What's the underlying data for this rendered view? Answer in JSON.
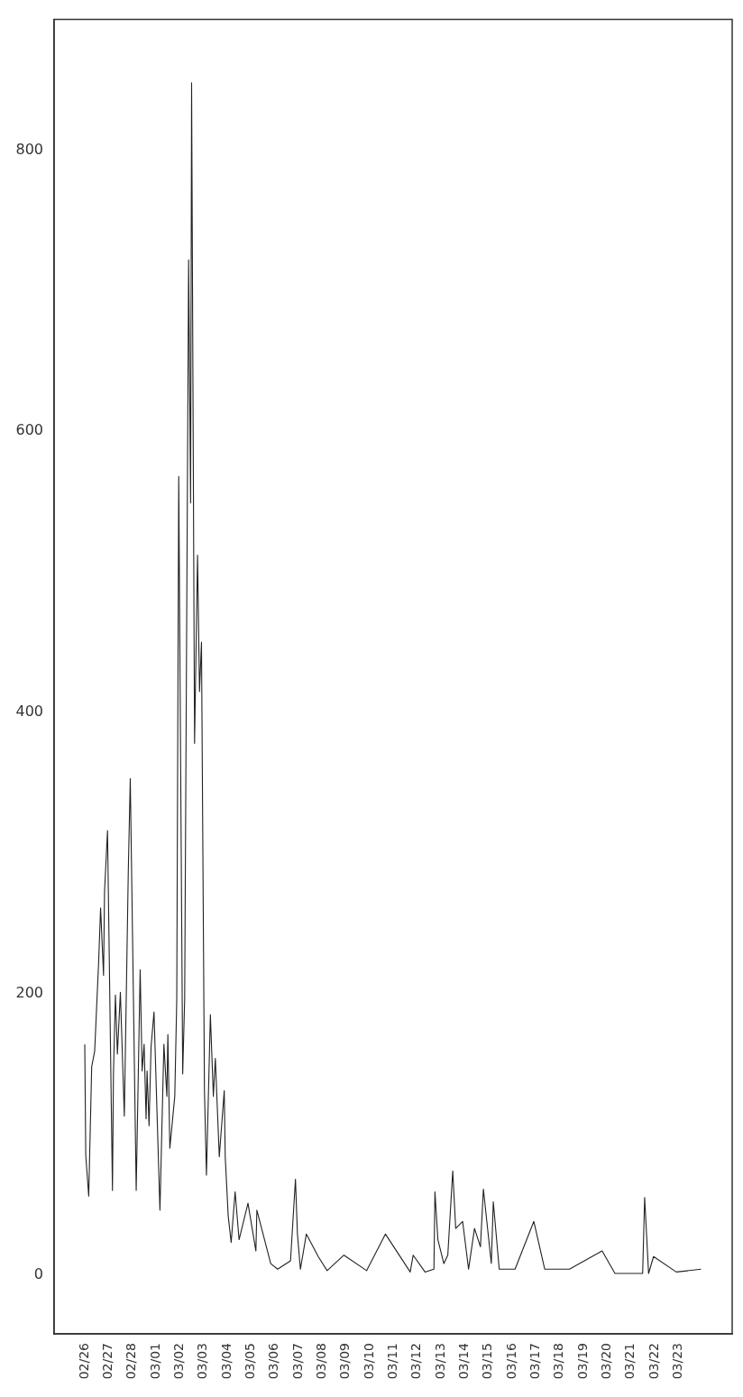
{
  "chart_data": {
    "type": "line",
    "color": "#222222",
    "x": [
      "--02-26T00:00",
      "--02-26T01:00",
      "--02-26T04:00",
      "--02-26T07:00",
      "--02-26T10:00",
      "--02-26T14:00",
      "--02-26T16:00",
      "--02-26T19:00",
      "--02-26T20:00",
      "--02-26T23:00",
      "--02-27T04:00",
      "--02-27T05:00",
      "--02-27T07:00",
      "--02-27T09:00",
      "--02-27T12:00",
      "--02-27T16:00",
      "--02-27T20:00",
      "--02-27T22:00",
      "--02-28T04:00",
      "--02-28T08:00",
      "--02-28T10:00",
      "--02-28T12:00",
      "--02-28T14:00",
      "--02-28T15:00",
      "--02-28T17:00",
      "--02-28T19:00",
      "--02-28T22:00",
      "--03-01T04:00",
      "--03-01T08:00",
      "--03-01T11:00",
      "--03-01T12:00",
      "--03-01T14:00",
      "--03-01T19:00",
      "--03-01T21:00",
      "--03-01T23:00",
      "--03-02T03:00",
      "--03-02T05:00",
      "--03-02T09:00",
      "--03-02T11:00",
      "--03-02T12:00",
      "--03-02T15:00",
      "--03-02T18:00",
      "--03-02T20:00",
      "--03-02T22:00",
      "--03-03T01:00",
      "--03-03T03:00",
      "--03-03T07:00",
      "--03-03T10:00",
      "--03-03T12:00",
      "--03-03T16:00",
      "--03-03T21:00",
      "--03-03T22:00",
      "--03-04T01:00",
      "--03-04T04:00",
      "--03-04T08:00",
      "--03-04T12:00",
      "--03-04T21:00",
      "--03-05T05:00",
      "--03-05T06:00",
      "--03-05T20:00",
      "--03-06T03:00",
      "--03-06T16:00",
      "--03-06T21:00",
      "--03-06T23:00",
      "--03-07T02:00",
      "--03-07T08:00",
      "--03-07T20:00",
      "--03-08T05:00",
      "--03-08T22:00",
      "--03-09T21:00",
      "--03-10T16:00",
      "--03-11T17:00",
      "--03-11T20:00",
      "--03-12T08:00",
      "--03-12T17:00",
      "--03-12T18:00",
      "--03-12T21:00",
      "--03-13T03:00",
      "--03-13T07:00",
      "--03-13T12:00",
      "--03-13T15:00",
      "--03-13T22:00",
      "--03-14T04:00",
      "--03-14T10:00",
      "--03-14T16:00",
      "--03-14T19:00",
      "--03-15T03:00",
      "--03-15T05:00",
      "--03-15T11:00",
      "--03-16T03:00",
      "--03-16T22:00",
      "--03-17T09:00",
      "--03-18T10:00",
      "--03-19T19:00",
      "--03-20T08:00",
      "--03-21T12:00",
      "--03-21T14:00",
      "--03-21T18:00",
      "--03-21T23:00",
      "--03-22T22:00",
      "--03-23T23:00"
    ],
    "values": [
      164,
      85,
      56,
      148,
      159,
      222,
      261,
      213,
      273,
      316,
      60,
      143,
      199,
      157,
      201,
      113,
      287,
      353,
      60,
      217,
      145,
      164,
      111,
      145,
      106,
      162,
      187,
      46,
      164,
      127,
      171,
      90,
      127,
      196,
      568,
      143,
      196,
      722,
      549,
      848,
      378,
      512,
      415,
      450,
      131,
      71,
      185,
      127,
      154,
      84,
      131,
      84,
      42,
      23,
      59,
      25,
      51,
      17,
      46,
      8,
      4,
      10,
      68,
      29,
      4,
      29,
      13,
      3,
      14,
      3,
      29,
      2,
      14,
      2,
      4,
      59,
      25,
      8,
      14,
      74,
      33,
      38,
      4,
      33,
      20,
      61,
      8,
      52,
      4,
      4,
      38,
      4,
      4,
      17,
      1,
      1,
      55,
      1,
      13,
      2,
      4
    ],
    "xlim": [
      "--02-24T17:00",
      "--03-25T06:30"
    ],
    "xticks": [
      {
        "value": "--02-26",
        "label": "02/26"
      },
      {
        "value": "--02-27",
        "label": "02/27"
      },
      {
        "value": "--02-28",
        "label": "02/28"
      },
      {
        "value": "--03-01",
        "label": "03/01"
      },
      {
        "value": "--03-02",
        "label": "03/02"
      },
      {
        "value": "--03-03",
        "label": "03/03"
      },
      {
        "value": "--03-04",
        "label": "03/04"
      },
      {
        "value": "--03-05",
        "label": "03/05"
      },
      {
        "value": "--03-06",
        "label": "03/06"
      },
      {
        "value": "--03-07",
        "label": "03/07"
      },
      {
        "value": "--03-08",
        "label": "03/08"
      },
      {
        "value": "--03-09",
        "label": "03/09"
      },
      {
        "value": "--03-10",
        "label": "03/10"
      },
      {
        "value": "--03-11",
        "label": "03/11"
      },
      {
        "value": "--03-12",
        "label": "03/12"
      },
      {
        "value": "--03-13",
        "label": "03/13"
      },
      {
        "value": "--03-14",
        "label": "03/14"
      },
      {
        "value": "--03-15",
        "label": "03/15"
      },
      {
        "value": "--03-16",
        "label": "03/16"
      },
      {
        "value": "--03-17",
        "label": "03/17"
      },
      {
        "value": "--03-18",
        "label": "03/18"
      },
      {
        "value": "--03-19",
        "label": "03/19"
      },
      {
        "value": "--03-20",
        "label": "03/20"
      },
      {
        "value": "--03-21",
        "label": "03/21"
      },
      {
        "value": "--03-22",
        "label": "03/22"
      },
      {
        "value": "--03-23",
        "label": "03/23"
      }
    ],
    "ylim": [
      -42,
      893
    ],
    "yticks": [
      0,
      200,
      400,
      600,
      800
    ]
  }
}
